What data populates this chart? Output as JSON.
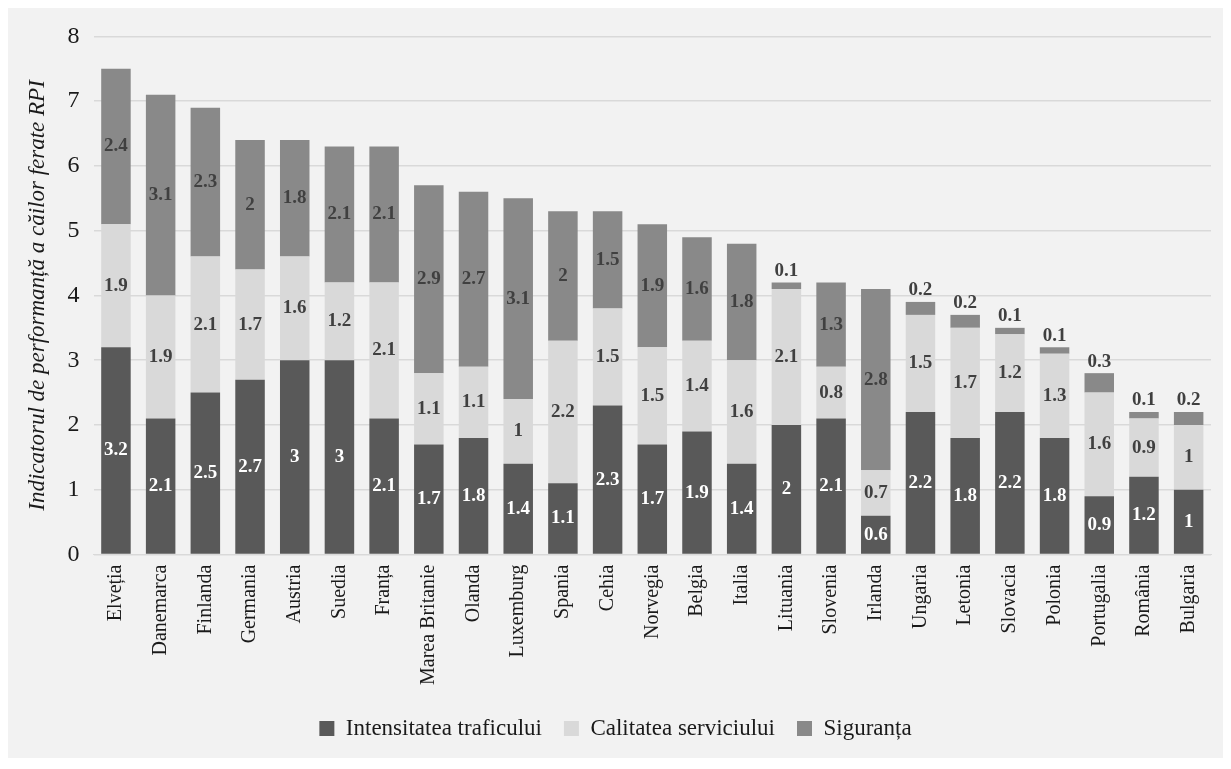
{
  "chart_data": {
    "type": "bar",
    "ylabel": "Indicatorul de performanță a căilor ferate RPI",
    "categories": [
      "Elveția",
      "Danemarca",
      "Finlanda",
      "Germania",
      "Austria",
      "Suedia",
      "Franța",
      "Marea Britanie",
      "Olanda",
      "Luxemburg",
      "Spania",
      "Cehia",
      "Norvegia",
      "Belgia",
      "Italia",
      "Lituania",
      "Slovenia",
      "Irlanda",
      "Ungaria",
      "Letonia",
      "Slovacia",
      "Polonia",
      "Portugalia",
      "România",
      "Bulgaria"
    ],
    "series": [
      {
        "name": "Intensitatea traficului",
        "color": "#595959",
        "values": [
          3.2,
          2.1,
          2.5,
          2.7,
          3,
          3,
          2.1,
          1.7,
          1.8,
          1.4,
          1.1,
          2.3,
          1.7,
          1.9,
          1.4,
          2,
          2.1,
          0.6,
          2.2,
          1.8,
          2.2,
          1.8,
          0.9,
          1.2,
          1
        ]
      },
      {
        "name": "Calitatea serviciului",
        "color": "#d9d9d9",
        "values": [
          1.9,
          1.9,
          2.1,
          1.7,
          1.6,
          1.2,
          2.1,
          1.1,
          1.1,
          1,
          2.2,
          1.5,
          1.5,
          1.4,
          1.6,
          2.1,
          0.8,
          0.7,
          1.5,
          1.7,
          1.2,
          1.3,
          1.6,
          0.9,
          1
        ]
      },
      {
        "name": "Siguranța",
        "color": "#898989",
        "values": [
          2.4,
          3.1,
          2.3,
          2,
          1.8,
          2.1,
          2.1,
          2.9,
          2.7,
          3.1,
          2,
          1.5,
          1.9,
          1.6,
          1.8,
          0.1,
          1.3,
          2.8,
          0.2,
          0.2,
          0.1,
          0.1,
          0.3,
          0.1,
          0.2
        ]
      }
    ],
    "stacked": true,
    "ylim": [
      0,
      8
    ],
    "yticks": [
      0,
      1,
      2,
      3,
      4,
      5,
      6,
      7,
      8
    ],
    "grid": "y",
    "legend": "bottom",
    "data_labels": true
  }
}
